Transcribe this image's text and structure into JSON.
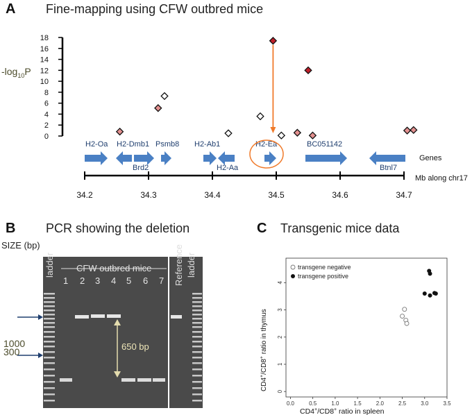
{
  "panel_a": {
    "letter": "A",
    "title": "Fine-mapping using CFW outbred mice",
    "ylabel_prefix": "-log",
    "ylabel_sub": "10",
    "ylabel_suffix": "P",
    "genes_label": "Genes",
    "mb_label": "Mb along chr17",
    "gene_labels_top": [
      "H2-Oa",
      "H2-Dmb1",
      "Psmb8",
      "H2-Ab1",
      "H2-Ea",
      "BC051142"
    ],
    "gene_labels_bottom": [
      "Brd2",
      "H2-Aa",
      "Btnl7"
    ]
  },
  "panel_b": {
    "letter": "B",
    "title": "PCR showing the deletion",
    "size_label": "SIZE (bp)",
    "ladder_left": "ladder",
    "group_label": "CFW outbred mice",
    "reference_label": "Reference",
    "ladder_right": "ladder",
    "lanes": [
      "1",
      "2",
      "3",
      "4",
      "5",
      "6",
      "7"
    ],
    "marker_1000": "1000",
    "marker_300": "300",
    "deletion_label": "650 bp"
  },
  "panel_c": {
    "letter": "C",
    "title": "Transgenic mice data",
    "legend_negative": "transgene negative",
    "legend_positive": "transgene positive",
    "xlabel": "CD4+/CD8+ ratio in spleen",
    "ylabel": "CD4+/CD8+ ratio in thymus"
  },
  "chart_data": [
    {
      "type": "scatter",
      "title": "Fine-mapping using CFW outbred mice",
      "xlabel": "Mb along chr17",
      "ylabel": "-log10P",
      "xlim": [
        34.2,
        34.7
      ],
      "ylim": [
        0,
        18
      ],
      "xticks": [
        "34.2",
        "34.3",
        "34.4",
        "34.5",
        "34.6",
        "34.7"
      ],
      "yticks": [
        "0",
        "2",
        "4",
        "6",
        "8",
        "10",
        "12",
        "14",
        "16",
        "18"
      ],
      "points": [
        {
          "x": 34.255,
          "y": 0.8,
          "category": "pink"
        },
        {
          "x": 34.315,
          "y": 5.1,
          "category": "pink"
        },
        {
          "x": 34.325,
          "y": 7.3,
          "category": "white"
        },
        {
          "x": 34.425,
          "y": 0.5,
          "category": "white"
        },
        {
          "x": 34.475,
          "y": 3.6,
          "category": "white"
        },
        {
          "x": 34.495,
          "y": 17.4,
          "category": "red"
        },
        {
          "x": 34.508,
          "y": 0.1,
          "category": "white"
        },
        {
          "x": 34.533,
          "y": 0.6,
          "category": "pink"
        },
        {
          "x": 34.55,
          "y": 12.0,
          "category": "red"
        },
        {
          "x": 34.557,
          "y": 0.1,
          "category": "pink"
        },
        {
          "x": 34.705,
          "y": 1.0,
          "category": "pink"
        },
        {
          "x": 34.715,
          "y": 1.1,
          "category": "pink"
        }
      ],
      "colors": {
        "red": "#c0202a",
        "pink": "#e3908f",
        "white": "#ffffff",
        "arrow": "#f07a2a",
        "gene": "#4a80c4"
      }
    },
    {
      "type": "scatter",
      "title": "Transgenic mice data",
      "xlabel": "CD4+/CD8+ ratio in spleen",
      "ylabel": "CD4+/CD8+ ratio in thymus",
      "xlim": [
        -0.1,
        3.5
      ],
      "ylim": [
        -0.2,
        4.9
      ],
      "xticks": [
        "0.0",
        "0.5",
        "1.0",
        "1.5",
        "2.0",
        "2.5",
        "3.0",
        "3.5"
      ],
      "yticks": [
        "0",
        "1",
        "2",
        "3",
        "4"
      ],
      "series": [
        {
          "name": "transgene negative",
          "points": [
            [
              2.55,
              3.02
            ],
            [
              2.5,
              2.77
            ],
            [
              2.58,
              2.62
            ],
            [
              2.6,
              2.5
            ]
          ]
        },
        {
          "name": "transgene positive",
          "points": [
            [
              3.1,
              4.43
            ],
            [
              3.12,
              4.33
            ],
            [
              3.0,
              3.6
            ],
            [
              3.12,
              3.53
            ],
            [
              3.22,
              3.62
            ],
            [
              3.25,
              3.6
            ]
          ]
        }
      ]
    }
  ]
}
